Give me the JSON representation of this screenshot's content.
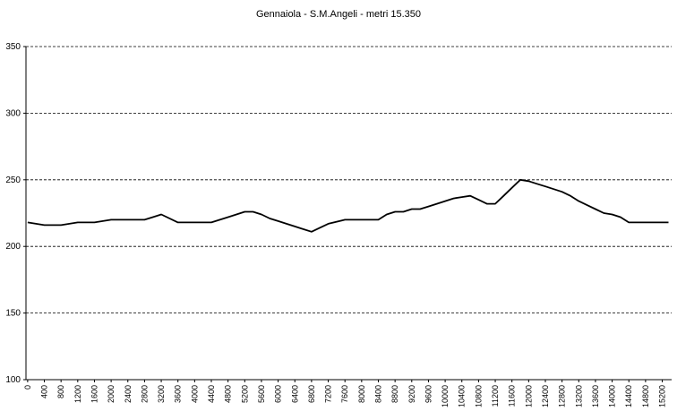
{
  "chart_data": {
    "type": "line",
    "title": "Gennaiola - S.M.Angeli - metri 15.350",
    "xlabel": "",
    "ylabel": "",
    "ylim": [
      100,
      350
    ],
    "yticks": [
      100,
      150,
      200,
      250,
      300,
      350
    ],
    "grid": "horizontal dashed",
    "x_tick_labels": [
      "0",
      "400",
      "800",
      "1200",
      "1600",
      "2000",
      "2400",
      "2800",
      "3200",
      "3600",
      "4000",
      "4400",
      "4800",
      "5200",
      "5600",
      "6000",
      "6400",
      "6800",
      "7200",
      "7600",
      "8000",
      "8400",
      "8800",
      "9200",
      "9600",
      "10000",
      "10400",
      "10800",
      "11200",
      "11600",
      "12000",
      "12400",
      "12800",
      "13200",
      "13600",
      "14000",
      "14400",
      "14800",
      "15200"
    ],
    "series": [
      {
        "color": "#000000",
        "x": [
          0,
          200,
          400,
          600,
          800,
          1200,
          1600,
          2000,
          2400,
          2800,
          3000,
          3200,
          3600,
          4000,
          4400,
          4800,
          5000,
          5200,
          5400,
          5600,
          5800,
          6000,
          6200,
          6400,
          6600,
          6800,
          7200,
          7600,
          8000,
          8200,
          8400,
          8600,
          8800,
          9000,
          9200,
          9400,
          9600,
          9800,
          10000,
          10200,
          10400,
          10600,
          10800,
          11000,
          11200,
          11400,
          11600,
          11800,
          12000,
          12200,
          12400,
          12600,
          12800,
          13000,
          13200,
          13400,
          13600,
          13800,
          14000,
          14200,
          14400,
          14600,
          14800,
          15000,
          15200,
          15350
        ],
        "y": [
          218,
          217,
          216,
          216,
          216,
          218,
          218,
          220,
          220,
          220,
          222,
          224,
          218,
          218,
          218,
          222,
          224,
          226,
          226,
          224,
          221,
          219,
          217,
          215,
          213,
          211,
          217,
          220,
          220,
          220,
          220,
          224,
          226,
          226,
          228,
          228,
          230,
          232,
          234,
          236,
          237,
          238,
          235,
          232,
          232,
          238,
          244,
          250,
          249,
          247,
          245,
          243,
          241,
          238,
          234,
          231,
          228,
          225,
          224,
          222,
          218,
          218,
          218,
          218,
          218,
          218
        ]
      }
    ]
  }
}
